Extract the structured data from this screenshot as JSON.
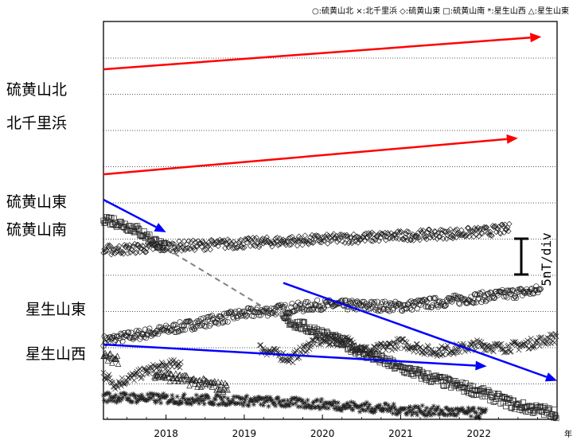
{
  "chart_data": {
    "type": "scatter",
    "legend_text": "○:硫黄山北 ×:北千里浜 ◇:硫黄山東 □:硫黄山南 *:星生山西 △:星生山東",
    "legend_position": "top-right",
    "x_unit": "年",
    "xlim": [
      2017.2,
      2023.0
    ],
    "x_ticks": [
      "2018",
      "2019",
      "2020",
      "2021",
      "2022"
    ],
    "grid": "horizontal-dotted",
    "scale_bar": {
      "label": "5nT/div",
      "span_div": 1
    },
    "series": [
      {
        "name": "硫黄山北",
        "marker": "circle",
        "label": "硫黄山北",
        "points": [
          [
            2017.2,
            1.2
          ],
          [
            2018.0,
            1.5
          ],
          [
            2019.0,
            1.95
          ],
          [
            2020.0,
            2.2
          ],
          [
            2021.0,
            2.15
          ],
          [
            2022.0,
            2.4
          ],
          [
            2022.8,
            2.6
          ]
        ]
      },
      {
        "name": "北千里浜",
        "marker": "x",
        "label": "北千里浜",
        "points": [
          [
            2017.2,
            0.3
          ],
          [
            2017.35,
            0.0
          ],
          [
            2017.8,
            0.4
          ],
          [
            2018.2,
            0.6
          ]
        ]
      },
      {
        "name": "北千里浜",
        "marker": "x",
        "label": "",
        "points": [
          [
            2019.2,
            1.0
          ],
          [
            2019.6,
            0.7
          ],
          [
            2019.9,
            1.2
          ],
          [
            2020.3,
            1.2
          ],
          [
            2020.6,
            0.9
          ],
          [
            2021.0,
            1.15
          ],
          [
            2021.4,
            0.9
          ],
          [
            2021.8,
            1.0
          ],
          [
            2022.0,
            1.1
          ],
          [
            2022.3,
            1.0
          ],
          [
            2022.6,
            1.1
          ],
          [
            2023.0,
            1.3
          ]
        ]
      },
      {
        "name": "硫黄山東",
        "marker": "diamond",
        "label": "硫黄山東",
        "points": [
          [
            2017.2,
            3.7
          ],
          [
            2018.0,
            3.8
          ],
          [
            2019.0,
            3.9
          ],
          [
            2020.0,
            4.0
          ],
          [
            2021.0,
            4.1
          ],
          [
            2022.0,
            4.2
          ],
          [
            2022.4,
            4.3
          ]
        ]
      },
      {
        "name": "硫黄山南",
        "marker": "square",
        "label": "硫黄山南",
        "points": [
          [
            2017.2,
            4.6
          ],
          [
            2017.6,
            4.3
          ],
          [
            2018.0,
            3.75
          ]
        ]
      },
      {
        "name": "硫黄山南",
        "marker": "square",
        "label": "",
        "points": [
          [
            2019.5,
            1.8
          ],
          [
            2020.0,
            1.4
          ],
          [
            2020.5,
            0.9
          ],
          [
            2021.0,
            0.45
          ],
          [
            2021.5,
            0.1
          ],
          [
            2022.0,
            -0.2
          ],
          [
            2022.5,
            -0.6
          ],
          [
            2023.0,
            -0.8
          ]
        ]
      },
      {
        "name": "星生山東",
        "marker": "triangle",
        "label": "星生山東",
        "points": [
          [
            2017.2,
            0.75
          ],
          [
            2017.4,
            0.7
          ]
        ]
      },
      {
        "name": "星生山東",
        "marker": "triangle",
        "label": "",
        "points": [
          [
            2017.85,
            0.3
          ],
          [
            2018.3,
            0.1
          ],
          [
            2018.8,
            -0.1
          ]
        ]
      },
      {
        "name": "星生山西",
        "marker": "asterisk",
        "label": "星生山西",
        "points": [
          [
            2017.2,
            -0.35
          ],
          [
            2018.0,
            -0.4
          ],
          [
            2019.0,
            -0.45
          ],
          [
            2020.0,
            -0.55
          ],
          [
            2021.0,
            -0.7
          ],
          [
            2021.5,
            -0.75
          ],
          [
            2022.0,
            -0.8
          ],
          [
            2022.1,
            -0.8
          ]
        ]
      }
    ],
    "trend_arrows": [
      {
        "color": "#ff0000",
        "from": [
          2017.2,
          8.7
        ],
        "to": [
          2022.8,
          9.6
        ]
      },
      {
        "color": "#ff0000",
        "from": [
          2017.2,
          5.8
        ],
        "to": [
          2022.5,
          6.8
        ]
      },
      {
        "color": "#0000ff",
        "from": [
          2017.2,
          5.1
        ],
        "to": [
          2018.0,
          4.2
        ]
      },
      {
        "color": "#0000ff",
        "from": [
          2019.5,
          2.8
        ],
        "to": [
          2023.0,
          0.1
        ]
      },
      {
        "color": "#0000ff",
        "from": [
          2017.2,
          1.1
        ],
        "to": [
          2022.1,
          0.5
        ]
      }
    ],
    "gap_line": {
      "color": "#808080",
      "from": [
        2018.0,
        3.75
      ],
      "to": [
        2019.5,
        1.8
      ]
    }
  }
}
